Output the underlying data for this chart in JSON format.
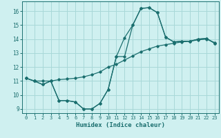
{
  "xlabel": "Humidex (Indice chaleur)",
  "xlim": [
    -0.5,
    23.5
  ],
  "ylim": [
    8.7,
    16.7
  ],
  "xticks": [
    0,
    1,
    2,
    3,
    4,
    5,
    6,
    7,
    8,
    9,
    10,
    11,
    12,
    13,
    14,
    15,
    16,
    17,
    18,
    19,
    20,
    21,
    22,
    23
  ],
  "yticks": [
    9,
    10,
    11,
    12,
    13,
    14,
    15,
    16
  ],
  "bg_color": "#cff0f0",
  "grid_color": "#a8d8d8",
  "line_color": "#1a6e6e",
  "line1_x": [
    0,
    1,
    2,
    3,
    4,
    5,
    6,
    7,
    8,
    9,
    10,
    11,
    12,
    13,
    14,
    15,
    16,
    17,
    18,
    19,
    20,
    21,
    22,
    23
  ],
  "line1_y": [
    11.2,
    11.0,
    11.0,
    11.0,
    11.1,
    11.15,
    11.2,
    11.3,
    11.45,
    11.65,
    12.0,
    12.2,
    12.5,
    12.8,
    13.1,
    13.3,
    13.5,
    13.6,
    13.7,
    13.8,
    13.85,
    13.95,
    14.0,
    13.75
  ],
  "line2_x": [
    0,
    1,
    2,
    3,
    4,
    5,
    6,
    7,
    8,
    9,
    10,
    11,
    12,
    13,
    14,
    15,
    16,
    17,
    18,
    19,
    20,
    21,
    22,
    23
  ],
  "line2_y": [
    11.2,
    11.0,
    10.75,
    11.0,
    9.6,
    9.6,
    9.5,
    9.0,
    9.0,
    9.4,
    10.4,
    12.75,
    14.1,
    15.0,
    16.2,
    16.25,
    15.9,
    14.15,
    13.8,
    13.85,
    13.85,
    14.0,
    14.05,
    13.7
  ],
  "line3_x": [
    0,
    1,
    2,
    3,
    4,
    5,
    6,
    7,
    8,
    9,
    10,
    11,
    12,
    13,
    14,
    15,
    16,
    17,
    18,
    19,
    20,
    21,
    22,
    23
  ],
  "line3_y": [
    11.2,
    11.0,
    10.75,
    11.0,
    9.6,
    9.6,
    9.5,
    9.0,
    9.0,
    9.4,
    10.4,
    12.75,
    12.75,
    15.0,
    16.2,
    16.25,
    15.9,
    14.15,
    13.8,
    13.85,
    13.85,
    14.0,
    14.05,
    13.7
  ]
}
